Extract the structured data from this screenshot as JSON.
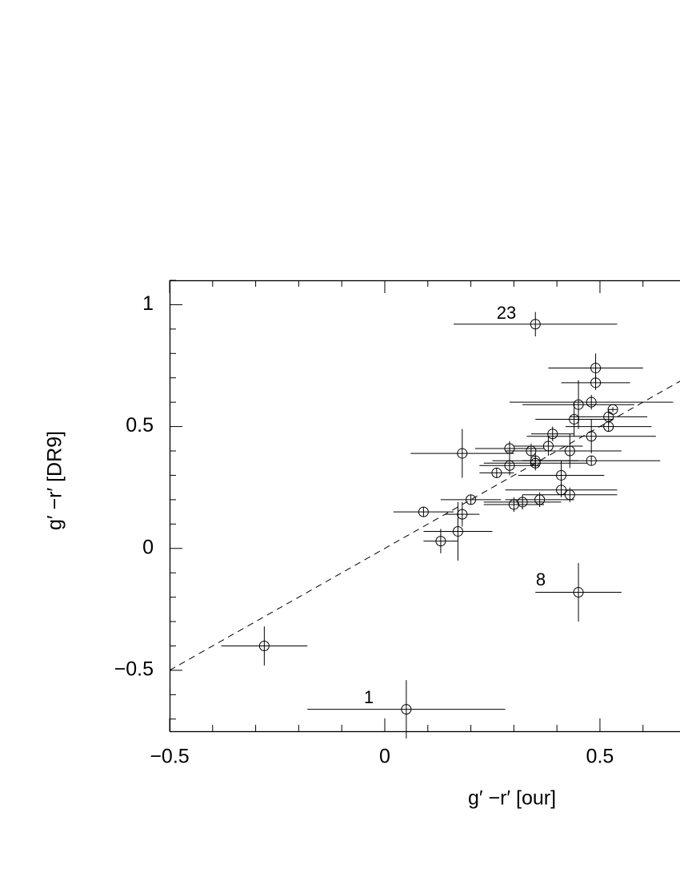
{
  "chart_data": {
    "type": "scatter",
    "xlabel": "g′ −r′  [our]",
    "ylabel": "g′ −r′  [DR9]",
    "x": [
      0.35,
      0.49,
      0.49,
      0.45,
      0.48,
      0.53,
      0.44,
      0.52,
      0.52,
      0.48,
      0.39,
      0.29,
      0.34,
      0.38,
      0.43,
      0.18,
      0.35,
      0.35,
      0.29,
      0.26,
      0.48,
      0.41,
      0.41,
      0.43,
      0.2,
      0.3,
      0.32,
      0.36,
      0.09,
      0.18,
      0.17,
      0.13,
      0.45,
      -0.28,
      0.05
    ],
    "values": [
      0.92,
      0.74,
      0.68,
      0.59,
      0.6,
      0.57,
      0.53,
      0.54,
      0.5,
      0.46,
      0.47,
      0.41,
      0.4,
      0.42,
      0.4,
      0.39,
      0.36,
      0.35,
      0.34,
      0.31,
      0.36,
      0.3,
      0.24,
      0.22,
      0.2,
      0.18,
      0.19,
      0.2,
      0.15,
      0.14,
      0.07,
      0.03,
      -0.18,
      -0.4,
      -0.66
    ],
    "xerr": [
      0.19,
      0.11,
      0.08,
      0.13,
      0.19,
      0.01,
      0.09,
      0.09,
      0.1,
      0.15,
      0.05,
      0.08,
      0.06,
      0.08,
      0.12,
      0.12,
      0.1,
      0.12,
      0.07,
      0.04,
      0.16,
      0.1,
      0.13,
      0.11,
      0.07,
      0.07,
      0.09,
      0.08,
      0.07,
      0.04,
      0.08,
      0.04,
      0.1,
      0.1,
      0.23
    ],
    "yerr": [
      0.05,
      0.06,
      0.03,
      0.1,
      0.03,
      0.01,
      0.07,
      0.03,
      0.02,
      0.07,
      0.03,
      0.03,
      0.03,
      0.04,
      0.07,
      0.1,
      0.03,
      0.03,
      0.04,
      0.02,
      0.02,
      0.06,
      0.03,
      0.03,
      0.02,
      0.03,
      0.03,
      0.03,
      0.02,
      0.05,
      0.12,
      0.05,
      0.12,
      0.08,
      0.12
    ],
    "annotations": [
      "23",
      "8",
      "1"
    ],
    "xlim": [
      -0.5,
      0.686
    ],
    "ylim": [
      -0.75,
      1.1
    ],
    "xticks": [
      {
        "value": -0.5,
        "label": "−0.5"
      },
      0,
      0.5
    ],
    "yticks": [
      {
        "value": -0.5,
        "label": "−0.5"
      },
      0,
      0.5,
      1
    ],
    "xminorticks": [
      -0.4,
      -0.3,
      -0.2,
      -0.1,
      0.1,
      0.2,
      0.3,
      0.4,
      0.6
    ],
    "yminorticks": [
      -0.7,
      -0.6,
      -0.4,
      -0.3,
      -0.2,
      -0.1,
      0.1,
      0.2,
      0.3,
      0.4,
      0.6,
      0.7,
      0.8,
      0.9,
      1.1
    ],
    "color": "#000000"
  }
}
